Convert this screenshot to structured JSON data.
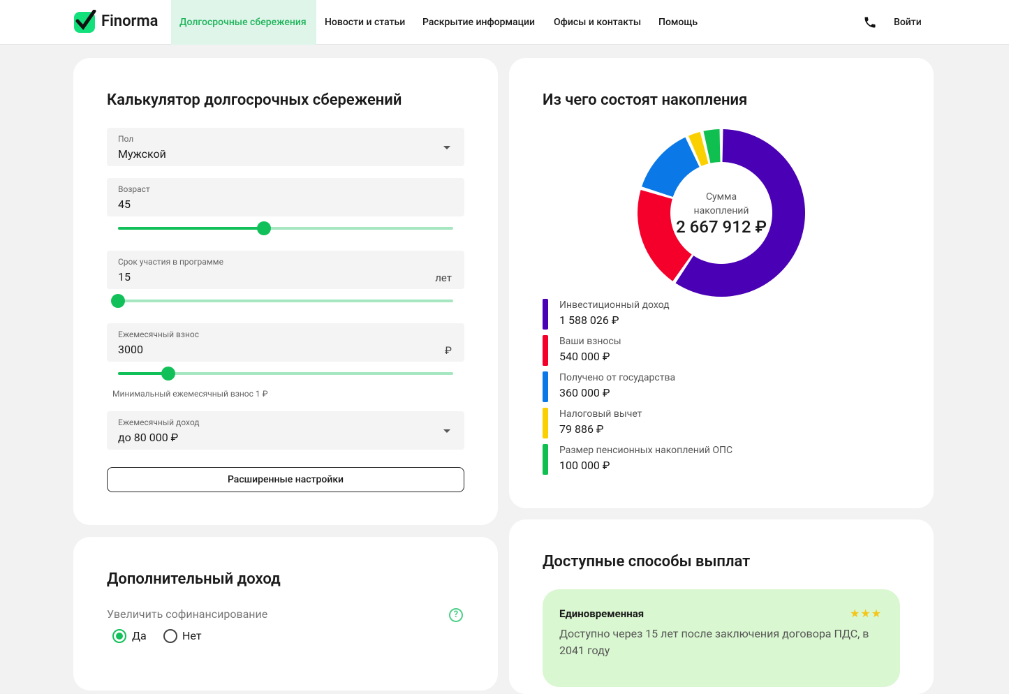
{
  "header": {
    "logo": "Finorma",
    "nav": [
      "Долгосрочные сбережения",
      "Новости и статьи",
      "Раскрытие информации",
      "Офисы и контакты",
      "Помощь"
    ],
    "login": "Войти"
  },
  "calculator": {
    "title": "Калькулятор долгосрочных сбережений",
    "fields": [
      {
        "label": "Пол",
        "value": "Мужской"
      },
      {
        "label": "Возраст",
        "value": "45"
      },
      {
        "label": "Срок участия в программе",
        "value": "15",
        "unit": "лет"
      },
      {
        "label": "Ежемесячный взнос",
        "value": "3000",
        "unit": "₽",
        "hint": "Минимальный ежемесячный взнос 1 ₽"
      },
      {
        "label": "Ежемесячный доход",
        "value": "до 80 000 ₽"
      }
    ],
    "button": "Расширенные настройки"
  },
  "extra": {
    "title": "Дополнительный доход",
    "question": "Увеличить софинансирование",
    "options": [
      "Да",
      "Нет"
    ]
  },
  "composition": {
    "type": "pie",
    "title": "Из чего состоят накопления",
    "center_label": "Сумма накоплений",
    "total": "2 667 912 ₽",
    "segments": [
      {
        "name": "Инвестиционный доход",
        "color": "#4a00b4",
        "value": 1588026,
        "value_label": "1 588 026 ₽"
      },
      {
        "name": "Ваши взносы",
        "color": "#f5002b",
        "value": 540000,
        "value_label": "540 000 ₽"
      },
      {
        "name": "Получено от государства",
        "color": "#0a78e6",
        "value": 360000,
        "value_label": "360 000 ₽"
      },
      {
        "name": "Налоговый вычет",
        "color": "#fbd000",
        "value": 79886,
        "value_label": "79 886 ₽"
      },
      {
        "name": "Размер пенсионных накоплений ОПС",
        "color": "#0fbf4f",
        "value": 100000,
        "value_label": "100 000 ₽"
      }
    ]
  },
  "payouts": {
    "title": "Доступные способы выплат",
    "card": {
      "title": "Единовременная",
      "text": "Доступно через 15 лет после заключения договора ПДС, в 2041 году"
    }
  }
}
